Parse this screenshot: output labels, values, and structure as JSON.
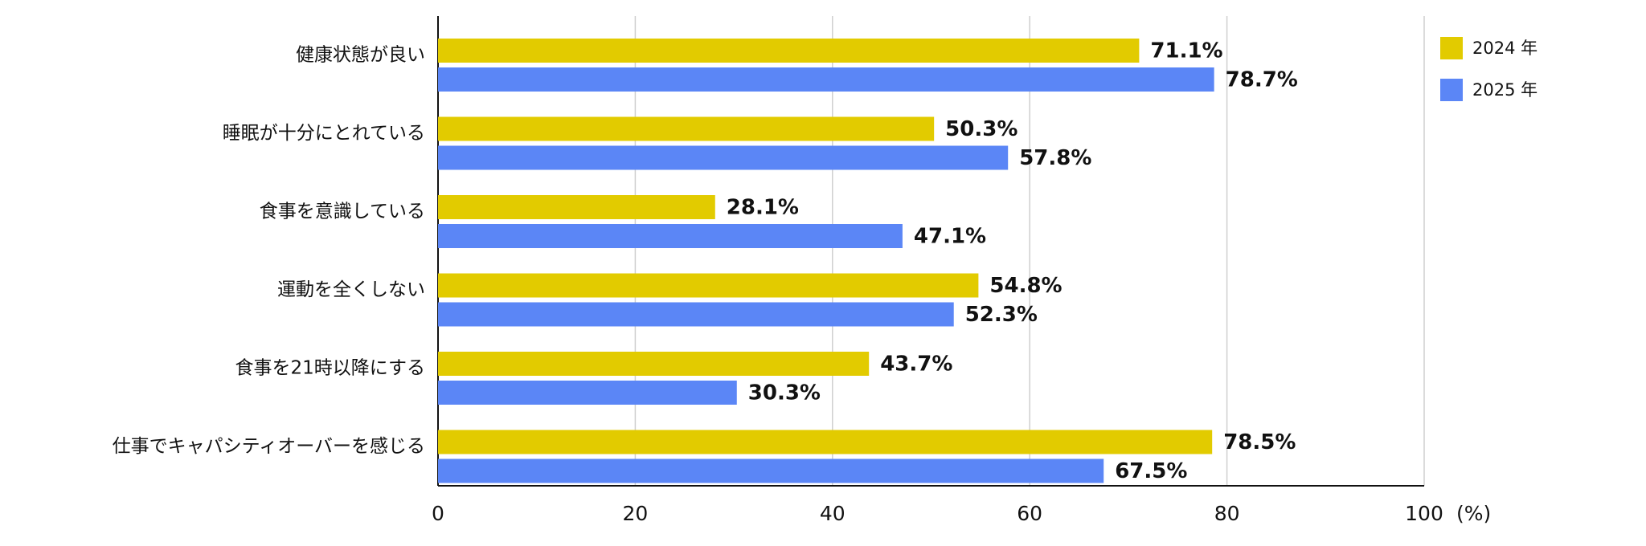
{
  "chart_data": {
    "type": "bar",
    "orientation": "horizontal",
    "categories": [
      "健康状態が良い",
      "睡眠が十分にとれている",
      "食事を意識している",
      "運動を全くしない",
      "食事を21時以降にする",
      "仕事でキャパシティオーバーを感じる"
    ],
    "series": [
      {
        "name": "2024 年",
        "color": "#e2cb00",
        "values": [
          71.1,
          50.3,
          28.1,
          54.8,
          43.7,
          78.5
        ],
        "value_labels": [
          "71.1%",
          "50.3%",
          "28.1%",
          "54.8%",
          "43.7%",
          "78.5%"
        ]
      },
      {
        "name": "2025 年",
        "color": "#5b86f6",
        "values": [
          78.7,
          57.8,
          47.1,
          52.3,
          30.3,
          67.5
        ],
        "value_labels": [
          "78.7%",
          "57.8%",
          "47.1%",
          "52.3%",
          "30.3%",
          "67.5%"
        ]
      }
    ],
    "xlim": [
      0,
      100
    ],
    "xticks": [
      0,
      20,
      40,
      60,
      80,
      100
    ],
    "x_unit": "(%)",
    "grid": true,
    "legend": "top-right"
  }
}
